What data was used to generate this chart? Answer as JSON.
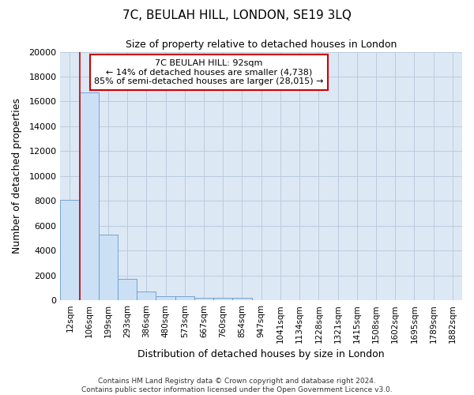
{
  "title_line1": "7C, BEULAH HILL, LONDON, SE19 3LQ",
  "title_line2": "Size of property relative to detached houses in London",
  "xlabel": "Distribution of detached houses by size in London",
  "ylabel": "Number of detached properties",
  "categories": [
    "12sqm",
    "106sqm",
    "199sqm",
    "293sqm",
    "386sqm",
    "480sqm",
    "573sqm",
    "667sqm",
    "760sqm",
    "854sqm",
    "947sqm",
    "1041sqm",
    "1134sqm",
    "1228sqm",
    "1321sqm",
    "1415sqm",
    "1508sqm",
    "1602sqm",
    "1695sqm",
    "1789sqm",
    "1882sqm"
  ],
  "values": [
    8100,
    16700,
    5300,
    1750,
    700,
    350,
    290,
    225,
    200,
    175,
    0,
    0,
    0,
    0,
    0,
    0,
    0,
    0,
    0,
    0,
    0
  ],
  "bar_color": "#cce0f5",
  "bar_edge_color": "#6699cc",
  "grid_color": "#bbccdd",
  "background_color": "#dde8f5",
  "vline_x": 0.5,
  "vline_color": "#cc0000",
  "annotation_text": "7C BEULAH HILL: 92sqm\n← 14% of detached houses are smaller (4,738)\n85% of semi-detached houses are larger (28,015) →",
  "annotation_box_color": "#ffffff",
  "annotation_box_edge": "#cc0000",
  "ylim": [
    0,
    20000
  ],
  "yticks": [
    0,
    2000,
    4000,
    6000,
    8000,
    10000,
    12000,
    14000,
    16000,
    18000,
    20000
  ],
  "footer_line1": "Contains HM Land Registry data © Crown copyright and database right 2024.",
  "footer_line2": "Contains public sector information licensed under the Open Government Licence v3.0."
}
